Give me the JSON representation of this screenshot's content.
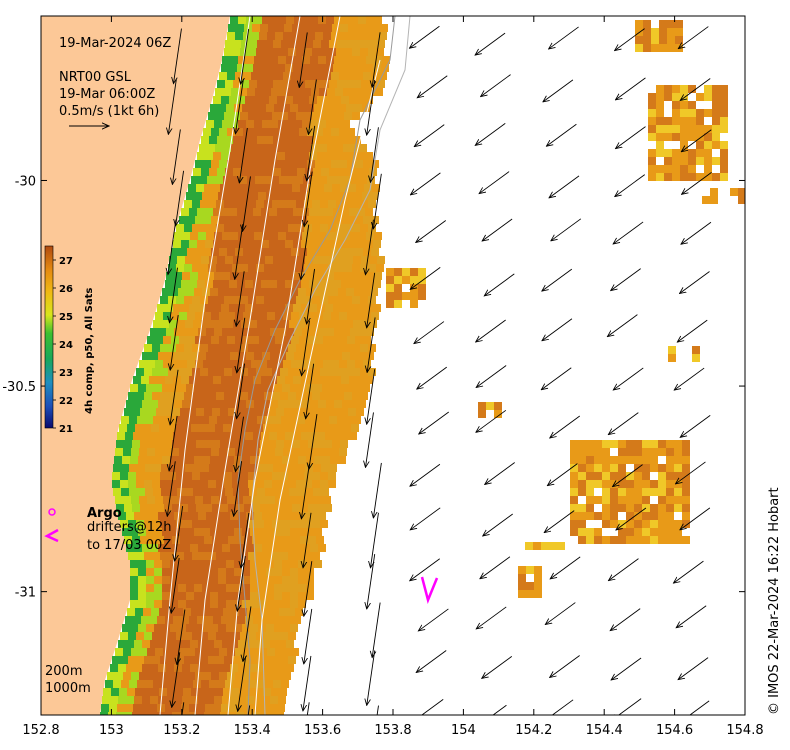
{
  "header": {
    "date": "19-Mar-2024 06Z",
    "current_source": "NRT00 GSL",
    "current_time": "19-Mar 06:00Z",
    "scale_label": "0.5m/s (1kt 6h)"
  },
  "colorbar": {
    "title": "4h comp, p50, All Sats",
    "ticks": [
      "27",
      "26",
      "25",
      "24",
      "23",
      "22",
      "21"
    ]
  },
  "legend": {
    "argo": "Argo",
    "drifters": "drifters@12h",
    "drifters_to": "to 17/03 00Z"
  },
  "isobaths": {
    "shallow": "200m",
    "deep": "1000m"
  },
  "credit": "© IMOS 22-Mar-2024 16:22 Hobart",
  "colors": {
    "land": "#fcc897",
    "argo": "#ff00ff",
    "drifter": "#ff00ff",
    "sst_warm": "#c8651a",
    "sst_mid": "#e89a18",
    "sst_cool": "#2aa83a"
  },
  "chart_data": {
    "type": "map",
    "x_axis": {
      "range": [
        152.8,
        154.8
      ],
      "ticks": [
        "152.8",
        "153",
        "153.2",
        "153.4",
        "153.6",
        "153.8",
        "154",
        "154.2",
        "154.4",
        "154.6",
        "154.8"
      ]
    },
    "y_axis": {
      "range": [
        -31.3,
        -29.6
      ],
      "ticks": [
        "-30",
        "-30.5",
        "-31"
      ]
    },
    "colorbar_range": [
      21,
      27.5
    ],
    "drifter_position": [
      153.9,
      -30.98
    ]
  }
}
